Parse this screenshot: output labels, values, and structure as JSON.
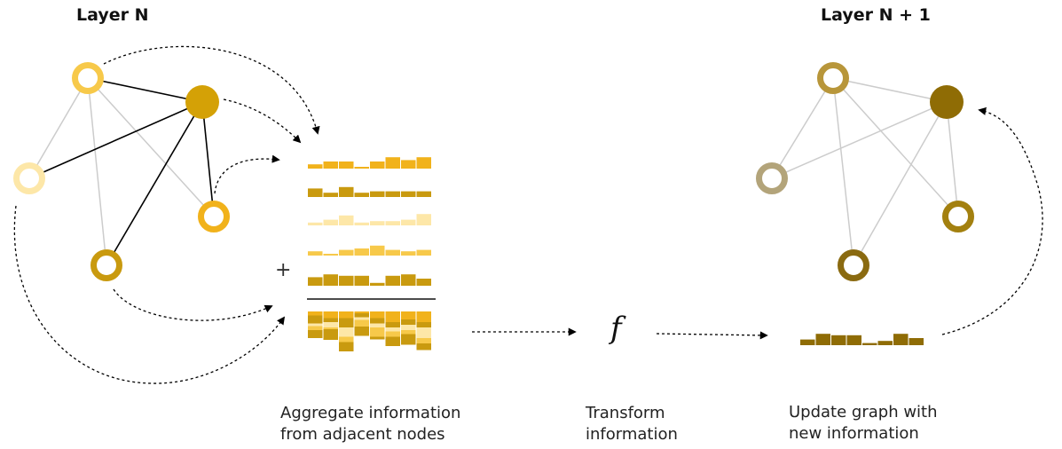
{
  "titles": {
    "layer_n": "Layer N",
    "layer_n1": "Layer N + 1"
  },
  "captions": {
    "aggregate": [
      "Aggregate information",
      "from adjacent nodes"
    ],
    "transform": [
      "Transform",
      "information"
    ],
    "update": [
      "Update graph with",
      "new information"
    ]
  },
  "function_symbol": "f",
  "plus_symbol": "+",
  "colors": {
    "node_a": "#f7c94a",
    "node_b": "#d4a106",
    "node_c": "#fde7a8",
    "node_d": "#f1b21b",
    "node_e": "#c99a0f",
    "update_node_a": "#b8963a",
    "update_node_b": "#8f6c05",
    "update_node_c": "#b3a47a",
    "update_node_d": "#a3800f",
    "update_node_e": "#8a6a10",
    "update_bar": "#8f6c05",
    "edge_active": "#000000",
    "edge_inactive": "#cccccc"
  },
  "aggregate_rows": [
    {
      "color": "#f1b21b",
      "values": [
        0.3,
        0.5,
        0.5,
        0.1,
        0.5,
        0.8,
        0.6,
        0.8
      ]
    },
    {
      "color": "#c99a0f",
      "values": [
        0.6,
        0.3,
        0.7,
        0.3,
        0.4,
        0.4,
        0.4,
        0.4
      ]
    },
    {
      "color": "#fde7a8",
      "values": [
        0.2,
        0.4,
        0.7,
        0.2,
        0.3,
        0.3,
        0.4,
        0.8
      ]
    },
    {
      "color": "#f7c94a",
      "values": [
        0.3,
        0.1,
        0.4,
        0.5,
        0.7,
        0.4,
        0.3,
        0.4
      ]
    },
    {
      "color": "#c99a0f",
      "values": [
        0.6,
        0.8,
        0.7,
        0.7,
        0.2,
        0.7,
        0.8,
        0.5
      ]
    }
  ],
  "update_values": [
    0.4,
    0.8,
    0.7,
    0.7,
    0.15,
    0.3,
    0.8,
    0.5
  ]
}
